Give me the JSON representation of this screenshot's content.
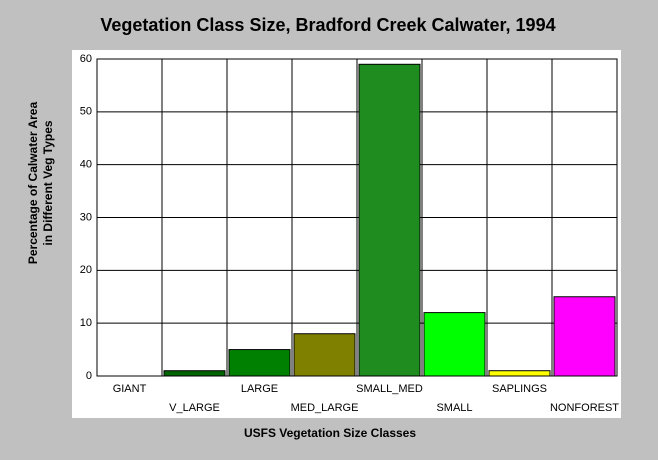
{
  "chart_data": {
    "type": "bar",
    "title": "Vegetation Class Size, Bradford Creek Calwater, 1994",
    "xlabel": "USFS Vegetation Size Classes",
    "ylabel": [
      "Percentage of Calwater Area",
      "in Different Veg Types"
    ],
    "categories": [
      "GIANT",
      "V_LARGE",
      "LARGE",
      "MED_LARGE",
      "SMALL_MED",
      "SMALL",
      "SAPLINGS",
      "NONFOREST"
    ],
    "values": [
      0,
      1,
      5,
      8,
      59,
      12,
      1,
      15
    ],
    "colors": [
      "#004000",
      "#006400",
      "#008000",
      "#808000",
      "#1e8c1e",
      "#00ff00",
      "#ffff00",
      "#ff00ff"
    ],
    "ylim": [
      0,
      60
    ],
    "yticks": [
      0,
      10,
      20,
      30,
      40,
      50,
      60
    ],
    "grid": true
  }
}
